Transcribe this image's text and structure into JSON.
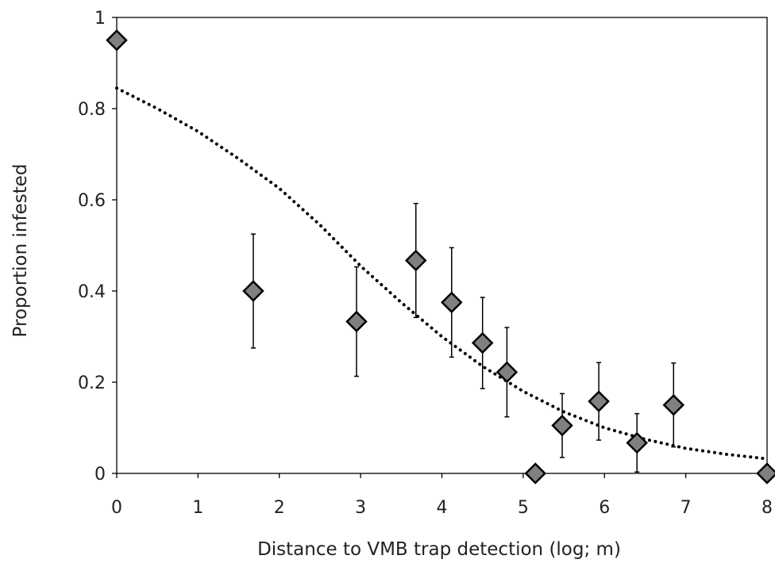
{
  "chart_data": {
    "type": "scatter",
    "title": "",
    "xlabel": "Distance to VMB trap detection (log; m)",
    "ylabel": "Proportion infested",
    "xlim": [
      0,
      8
    ],
    "ylim": [
      0,
      1
    ],
    "x_ticks": [
      0,
      1,
      2,
      3,
      4,
      5,
      6,
      7,
      8
    ],
    "y_ticks": [
      0,
      0.2,
      0.4,
      0.6,
      0.8,
      1
    ],
    "y_tick_labels": [
      "0",
      "0.2",
      "0.4",
      "0.6",
      "0.8",
      "1"
    ],
    "grid": false,
    "legend": "none",
    "marker": {
      "shape": "diamond",
      "fill": "#808080",
      "stroke": "#000000"
    },
    "points": [
      {
        "x": 0.0,
        "y": 0.95
      },
      {
        "x": 1.68,
        "y": 0.4,
        "err_low": 0.125,
        "err_high": 0.125
      },
      {
        "x": 2.95,
        "y": 0.333,
        "err_low": 0.12,
        "err_high": 0.12
      },
      {
        "x": 3.68,
        "y": 0.467,
        "err_low": 0.125,
        "err_high": 0.125
      },
      {
        "x": 4.12,
        "y": 0.375,
        "err_low": 0.12,
        "err_high": 0.12
      },
      {
        "x": 4.5,
        "y": 0.286,
        "err_low": 0.1,
        "err_high": 0.1
      },
      {
        "x": 4.8,
        "y": 0.222,
        "err_low": 0.098,
        "err_high": 0.098
      },
      {
        "x": 5.15,
        "y": 0.0
      },
      {
        "x": 5.48,
        "y": 0.105,
        "err_low": 0.07,
        "err_high": 0.07
      },
      {
        "x": 5.93,
        "y": 0.158,
        "err_low": 0.085,
        "err_high": 0.085
      },
      {
        "x": 6.4,
        "y": 0.067,
        "err_low": 0.064,
        "err_high": 0.064
      },
      {
        "x": 6.85,
        "y": 0.15,
        "err_low": 0.092,
        "err_high": 0.092
      },
      {
        "x": 8.0,
        "y": 0.0
      }
    ],
    "fit_curve": {
      "style": "dotted",
      "color": "#000000",
      "x": [
        0,
        0.5,
        1,
        1.5,
        2,
        2.5,
        3,
        3.5,
        4,
        4.5,
        5,
        5.5,
        6,
        6.5,
        7,
        7.5,
        8
      ],
      "y": [
        0.845,
        0.8,
        0.75,
        0.69,
        0.625,
        0.545,
        0.455,
        0.375,
        0.3,
        0.235,
        0.18,
        0.135,
        0.1,
        0.075,
        0.055,
        0.042,
        0.032
      ]
    }
  }
}
